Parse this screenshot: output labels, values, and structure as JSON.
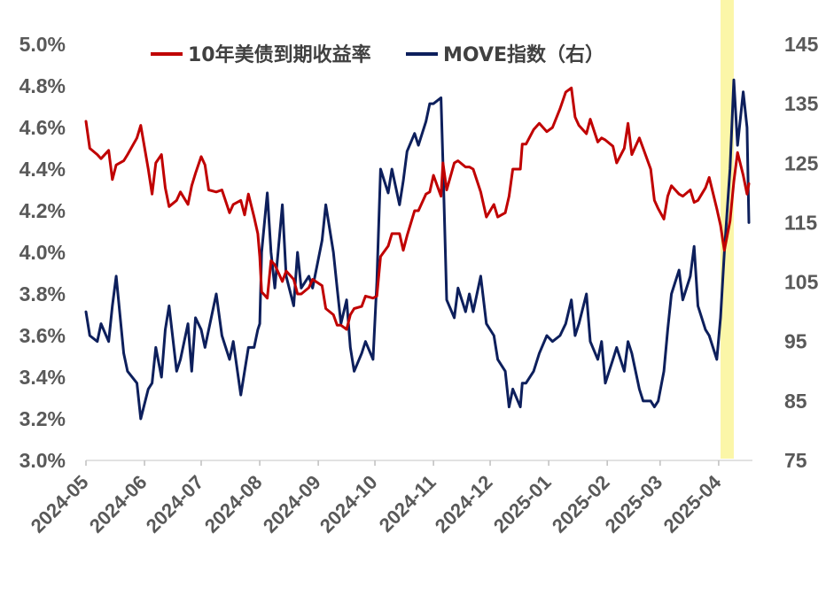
{
  "chart_data": {
    "type": "line",
    "title": "",
    "xlabel": "",
    "ylabel": "",
    "x_tick_labels": [
      "2024-05",
      "2024-06",
      "2024-07",
      "2024-08",
      "2024-09",
      "2024-10",
      "2024-11",
      "2024-12",
      "2025-01",
      "2025-02",
      "2025-03",
      "2025-04"
    ],
    "y_left": {
      "ylim": [
        3.0,
        5.0
      ],
      "ticks": [
        3.0,
        3.2,
        3.4,
        3.6,
        3.8,
        4.0,
        4.2,
        4.4,
        4.6,
        4.8,
        5.0
      ],
      "tick_labels": [
        "3.0%",
        "3.2%",
        "3.4%",
        "3.6%",
        "3.8%",
        "4.0%",
        "4.2%",
        "4.4%",
        "4.6%",
        "4.8%",
        "5.0%"
      ]
    },
    "y_right": {
      "ylim": [
        75,
        145
      ],
      "ticks": [
        75,
        85,
        95,
        105,
        115,
        125,
        135,
        145
      ],
      "tick_labels": [
        "75",
        "85",
        "95",
        "105",
        "115",
        "125",
        "135",
        "145"
      ]
    },
    "grid": false,
    "legend_position": "top",
    "highlight": {
      "x_start": "2025-04-02",
      "x_end": "2025-04-09",
      "color": "#fbf6a8"
    },
    "series": [
      {
        "name": "10年美债到期收益率",
        "axis": "left",
        "color": "#c00000",
        "points": [
          [
            "2024-05-01",
            4.63
          ],
          [
            "2024-05-03",
            4.5
          ],
          [
            "2024-05-07",
            4.47
          ],
          [
            "2024-05-09",
            4.45
          ],
          [
            "2024-05-13",
            4.49
          ],
          [
            "2024-05-15",
            4.35
          ],
          [
            "2024-05-17",
            4.42
          ],
          [
            "2024-05-21",
            4.44
          ],
          [
            "2024-05-23",
            4.47
          ],
          [
            "2024-05-28",
            4.55
          ],
          [
            "2024-05-30",
            4.61
          ],
          [
            "2024-06-03",
            4.4
          ],
          [
            "2024-06-05",
            4.28
          ],
          [
            "2024-06-07",
            4.43
          ],
          [
            "2024-06-10",
            4.47
          ],
          [
            "2024-06-12",
            4.31
          ],
          [
            "2024-06-14",
            4.22
          ],
          [
            "2024-06-18",
            4.25
          ],
          [
            "2024-06-20",
            4.29
          ],
          [
            "2024-06-24",
            4.23
          ],
          [
            "2024-06-26",
            4.32
          ],
          [
            "2024-06-28",
            4.38
          ],
          [
            "2024-07-01",
            4.46
          ],
          [
            "2024-07-03",
            4.42
          ],
          [
            "2024-07-05",
            4.3
          ],
          [
            "2024-07-09",
            4.29
          ],
          [
            "2024-07-12",
            4.3
          ],
          [
            "2024-07-16",
            4.19
          ],
          [
            "2024-07-18",
            4.23
          ],
          [
            "2024-07-22",
            4.25
          ],
          [
            "2024-07-24",
            4.18
          ],
          [
            "2024-07-26",
            4.28
          ],
          [
            "2024-07-29",
            4.17
          ],
          [
            "2024-07-31",
            4.09
          ],
          [
            "2024-08-01",
            3.98
          ],
          [
            "2024-08-02",
            3.81
          ],
          [
            "2024-08-05",
            3.78
          ],
          [
            "2024-08-07",
            3.96
          ],
          [
            "2024-08-09",
            3.94
          ],
          [
            "2024-08-13",
            3.86
          ],
          [
            "2024-08-15",
            3.91
          ],
          [
            "2024-08-19",
            3.87
          ],
          [
            "2024-08-21",
            3.8
          ],
          [
            "2024-08-23",
            3.8
          ],
          [
            "2024-08-27",
            3.83
          ],
          [
            "2024-08-29",
            3.87
          ],
          [
            "2024-09-03",
            3.84
          ],
          [
            "2024-09-05",
            3.73
          ],
          [
            "2024-09-09",
            3.7
          ],
          [
            "2024-09-11",
            3.65
          ],
          [
            "2024-09-13",
            3.65
          ],
          [
            "2024-09-16",
            3.63
          ],
          [
            "2024-09-18",
            3.7
          ],
          [
            "2024-09-20",
            3.73
          ],
          [
            "2024-09-24",
            3.74
          ],
          [
            "2024-09-26",
            3.79
          ],
          [
            "2024-09-30",
            3.78
          ],
          [
            "2024-10-02",
            3.79
          ],
          [
            "2024-10-04",
            3.98
          ],
          [
            "2024-10-08",
            4.03
          ],
          [
            "2024-10-10",
            4.09
          ],
          [
            "2024-10-14",
            4.09
          ],
          [
            "2024-10-16",
            4.01
          ],
          [
            "2024-10-18",
            4.08
          ],
          [
            "2024-10-22",
            4.2
          ],
          [
            "2024-10-24",
            4.2
          ],
          [
            "2024-10-28",
            4.28
          ],
          [
            "2024-10-30",
            4.29
          ],
          [
            "2024-11-01",
            4.37
          ],
          [
            "2024-11-05",
            4.27
          ],
          [
            "2024-11-06",
            4.43
          ],
          [
            "2024-11-08",
            4.3
          ],
          [
            "2024-11-12",
            4.43
          ],
          [
            "2024-11-14",
            4.44
          ],
          [
            "2024-11-18",
            4.41
          ],
          [
            "2024-11-20",
            4.41
          ],
          [
            "2024-11-22",
            4.4
          ],
          [
            "2024-11-26",
            4.29
          ],
          [
            "2024-11-29",
            4.17
          ],
          [
            "2024-12-03",
            4.23
          ],
          [
            "2024-12-05",
            4.17
          ],
          [
            "2024-12-09",
            4.19
          ],
          [
            "2024-12-11",
            4.27
          ],
          [
            "2024-12-13",
            4.4
          ],
          [
            "2024-12-17",
            4.4
          ],
          [
            "2024-12-18",
            4.52
          ],
          [
            "2024-12-20",
            4.52
          ],
          [
            "2024-12-24",
            4.59
          ],
          [
            "2024-12-27",
            4.62
          ],
          [
            "2024-12-31",
            4.58
          ],
          [
            "2025-01-03",
            4.6
          ],
          [
            "2025-01-07",
            4.69
          ],
          [
            "2025-01-10",
            4.77
          ],
          [
            "2025-01-13",
            4.79
          ],
          [
            "2025-01-15",
            4.65
          ],
          [
            "2025-01-17",
            4.61
          ],
          [
            "2025-01-21",
            4.57
          ],
          [
            "2025-01-23",
            4.64
          ],
          [
            "2025-01-27",
            4.53
          ],
          [
            "2025-01-29",
            4.55
          ],
          [
            "2025-01-31",
            4.54
          ],
          [
            "2025-02-04",
            4.51
          ],
          [
            "2025-02-06",
            4.43
          ],
          [
            "2025-02-10",
            4.5
          ],
          [
            "2025-02-12",
            4.62
          ],
          [
            "2025-02-14",
            4.47
          ],
          [
            "2025-02-18",
            4.55
          ],
          [
            "2025-02-20",
            4.5
          ],
          [
            "2025-02-24",
            4.4
          ],
          [
            "2025-02-26",
            4.25
          ],
          [
            "2025-02-28",
            4.21
          ],
          [
            "2025-03-03",
            4.16
          ],
          [
            "2025-03-05",
            4.27
          ],
          [
            "2025-03-07",
            4.32
          ],
          [
            "2025-03-11",
            4.28
          ],
          [
            "2025-03-13",
            4.27
          ],
          [
            "2025-03-17",
            4.3
          ],
          [
            "2025-03-19",
            4.24
          ],
          [
            "2025-03-21",
            4.25
          ],
          [
            "2025-03-25",
            4.31
          ],
          [
            "2025-03-27",
            4.36
          ],
          [
            "2025-03-31",
            4.21
          ],
          [
            "2025-04-02",
            4.13
          ],
          [
            "2025-04-04",
            4.01
          ],
          [
            "2025-04-07",
            4.15
          ],
          [
            "2025-04-09",
            4.34
          ],
          [
            "2025-04-11",
            4.48
          ],
          [
            "2025-04-14",
            4.37
          ],
          [
            "2025-04-16",
            4.28
          ],
          [
            "2025-04-17",
            4.33
          ]
        ]
      },
      {
        "name": "MOVE指数（右）",
        "axis": "right",
        "color": "#0d1f5c",
        "points": [
          [
            "2024-05-01",
            100
          ],
          [
            "2024-05-03",
            96
          ],
          [
            "2024-05-07",
            95
          ],
          [
            "2024-05-09",
            98
          ],
          [
            "2024-05-13",
            95
          ],
          [
            "2024-05-15",
            101
          ],
          [
            "2024-05-17",
            106
          ],
          [
            "2024-05-21",
            93
          ],
          [
            "2024-05-23",
            90
          ],
          [
            "2024-05-28",
            88
          ],
          [
            "2024-05-30",
            82
          ],
          [
            "2024-06-03",
            87
          ],
          [
            "2024-06-05",
            88
          ],
          [
            "2024-06-07",
            94
          ],
          [
            "2024-06-10",
            89
          ],
          [
            "2024-06-12",
            97
          ],
          [
            "2024-06-14",
            101
          ],
          [
            "2024-06-18",
            90
          ],
          [
            "2024-06-20",
            92
          ],
          [
            "2024-06-24",
            98
          ],
          [
            "2024-06-26",
            90
          ],
          [
            "2024-06-28",
            99
          ],
          [
            "2024-07-01",
            97
          ],
          [
            "2024-07-03",
            94
          ],
          [
            "2024-07-05",
            97
          ],
          [
            "2024-07-09",
            103
          ],
          [
            "2024-07-12",
            96
          ],
          [
            "2024-07-16",
            92
          ],
          [
            "2024-07-18",
            95
          ],
          [
            "2024-07-22",
            86
          ],
          [
            "2024-07-24",
            90
          ],
          [
            "2024-07-26",
            94
          ],
          [
            "2024-07-29",
            94
          ],
          [
            "2024-07-31",
            97
          ],
          [
            "2024-08-01",
            98
          ],
          [
            "2024-08-02",
            110
          ],
          [
            "2024-08-05",
            120
          ],
          [
            "2024-08-07",
            110
          ],
          [
            "2024-08-09",
            104
          ],
          [
            "2024-08-13",
            118
          ],
          [
            "2024-08-15",
            106
          ],
          [
            "2024-08-19",
            101
          ],
          [
            "2024-08-21",
            110
          ],
          [
            "2024-08-23",
            104
          ],
          [
            "2024-08-27",
            106
          ],
          [
            "2024-08-29",
            104
          ],
          [
            "2024-09-03",
            112
          ],
          [
            "2024-09-05",
            118
          ],
          [
            "2024-09-09",
            110
          ],
          [
            "2024-09-11",
            104
          ],
          [
            "2024-09-13",
            98
          ],
          [
            "2024-09-16",
            102
          ],
          [
            "2024-09-18",
            94
          ],
          [
            "2024-09-20",
            90
          ],
          [
            "2024-09-24",
            93
          ],
          [
            "2024-09-26",
            95
          ],
          [
            "2024-09-30",
            92
          ],
          [
            "2024-10-02",
            105
          ],
          [
            "2024-10-04",
            124
          ],
          [
            "2024-10-08",
            120
          ],
          [
            "2024-10-10",
            124
          ],
          [
            "2024-10-14",
            118
          ],
          [
            "2024-10-16",
            122
          ],
          [
            "2024-10-18",
            127
          ],
          [
            "2024-10-22",
            130
          ],
          [
            "2024-10-24",
            128
          ],
          [
            "2024-10-28",
            132
          ],
          [
            "2024-10-30",
            135
          ],
          [
            "2024-11-01",
            135
          ],
          [
            "2024-11-05",
            136
          ],
          [
            "2024-11-06",
            125
          ],
          [
            "2024-11-08",
            102
          ],
          [
            "2024-11-12",
            99
          ],
          [
            "2024-11-14",
            104
          ],
          [
            "2024-11-18",
            100
          ],
          [
            "2024-11-20",
            103
          ],
          [
            "2024-11-22",
            100
          ],
          [
            "2024-11-26",
            106
          ],
          [
            "2024-11-29",
            98
          ],
          [
            "2024-12-03",
            96
          ],
          [
            "2024-12-05",
            92
          ],
          [
            "2024-12-09",
            90
          ],
          [
            "2024-12-11",
            84
          ],
          [
            "2024-12-13",
            87
          ],
          [
            "2024-12-17",
            84
          ],
          [
            "2024-12-18",
            88
          ],
          [
            "2024-12-20",
            88
          ],
          [
            "2024-12-24",
            90
          ],
          [
            "2024-12-27",
            93
          ],
          [
            "2024-12-31",
            96
          ],
          [
            "2025-01-03",
            95
          ],
          [
            "2025-01-07",
            96
          ],
          [
            "2025-01-10",
            98
          ],
          [
            "2025-01-13",
            102
          ],
          [
            "2025-01-15",
            96
          ],
          [
            "2025-01-17",
            98
          ],
          [
            "2025-01-21",
            103
          ],
          [
            "2025-01-23",
            95
          ],
          [
            "2025-01-27",
            92
          ],
          [
            "2025-01-29",
            95
          ],
          [
            "2025-01-31",
            88
          ],
          [
            "2025-02-04",
            92
          ],
          [
            "2025-02-06",
            94
          ],
          [
            "2025-02-10",
            90
          ],
          [
            "2025-02-12",
            95
          ],
          [
            "2025-02-14",
            93
          ],
          [
            "2025-02-18",
            87
          ],
          [
            "2025-02-20",
            85
          ],
          [
            "2025-02-24",
            85
          ],
          [
            "2025-02-26",
            84
          ],
          [
            "2025-02-28",
            85
          ],
          [
            "2025-03-03",
            90
          ],
          [
            "2025-03-05",
            97
          ],
          [
            "2025-03-07",
            103
          ],
          [
            "2025-03-11",
            107
          ],
          [
            "2025-03-13",
            102
          ],
          [
            "2025-03-17",
            106
          ],
          [
            "2025-03-19",
            111
          ],
          [
            "2025-03-21",
            101
          ],
          [
            "2025-03-25",
            97
          ],
          [
            "2025-03-27",
            96
          ],
          [
            "2025-03-31",
            92
          ],
          [
            "2025-04-02",
            99
          ],
          [
            "2025-04-04",
            110
          ],
          [
            "2025-04-07",
            124
          ],
          [
            "2025-04-09",
            139
          ],
          [
            "2025-04-11",
            128
          ],
          [
            "2025-04-14",
            137
          ],
          [
            "2025-04-16",
            131
          ],
          [
            "2025-04-17",
            115
          ]
        ]
      }
    ]
  }
}
